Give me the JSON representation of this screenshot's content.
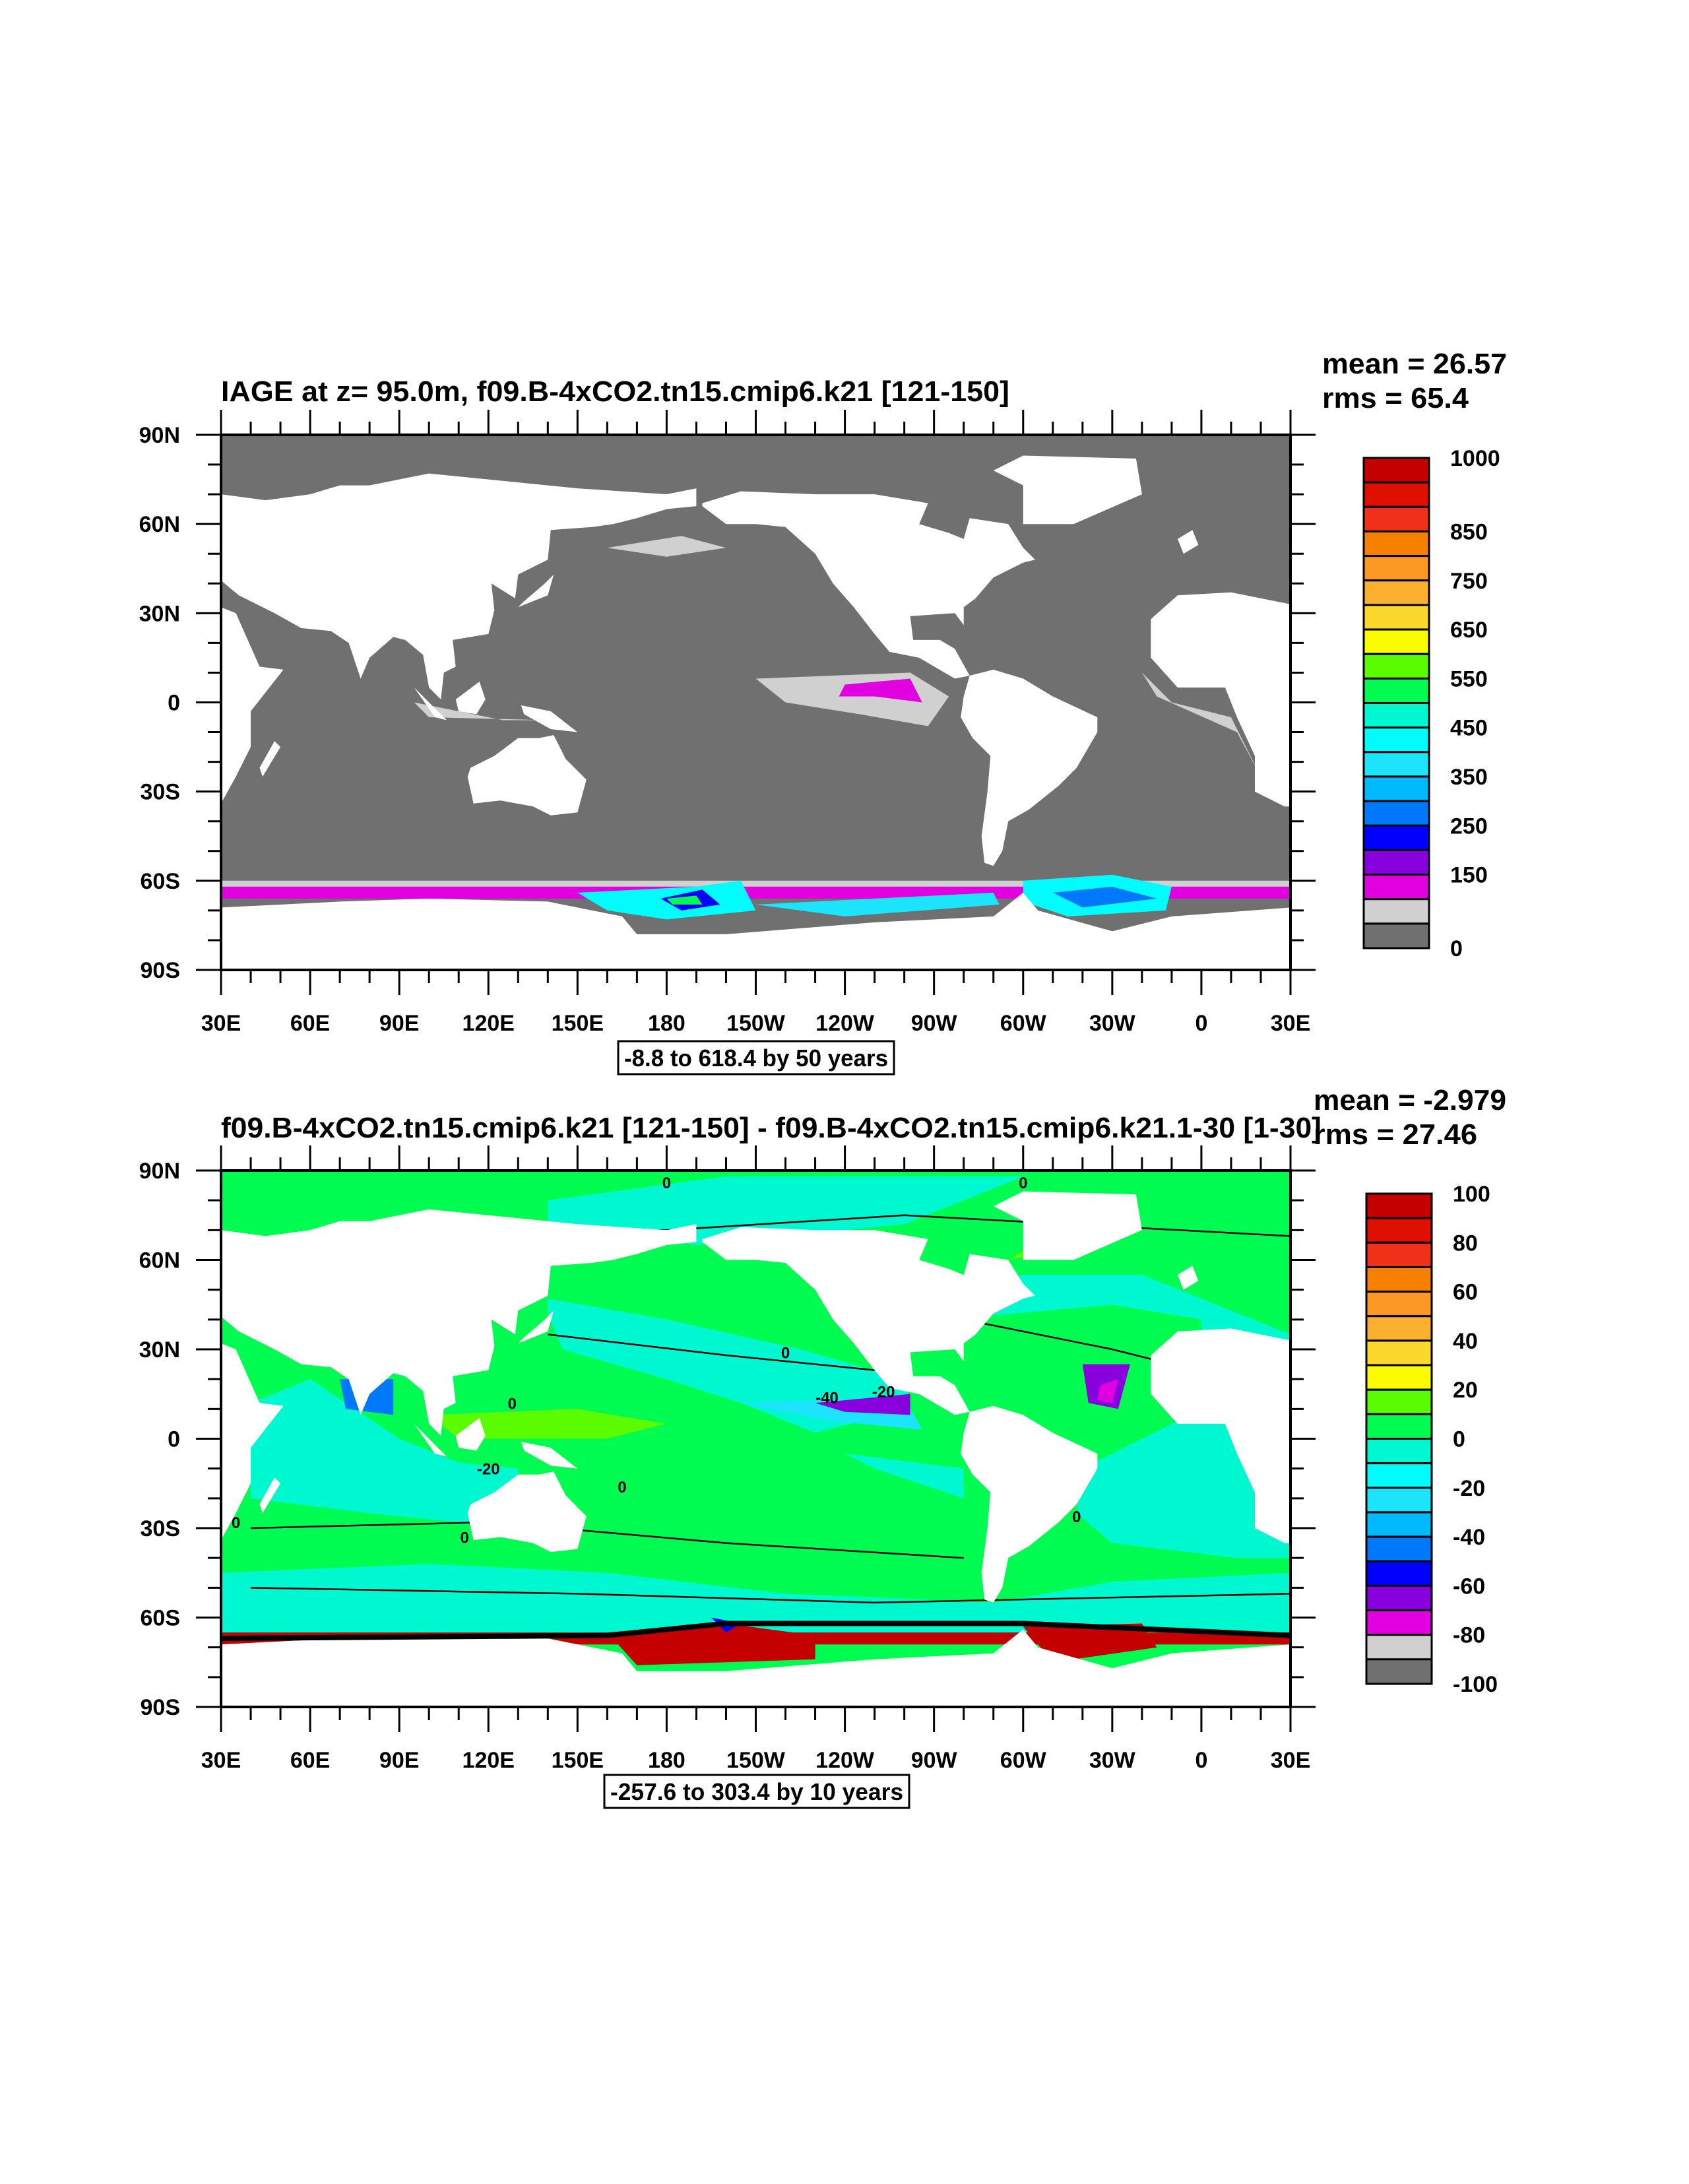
{
  "chart_data": [
    {
      "type": "heatmap",
      "subtype": "contour-map",
      "title": "IAGE at z=  95.0m, f09.B-4xCO2.tn15.cmip6.k21 [121-150]",
      "mean_label": "mean = 26.57",
      "rms_label": "rms = 65.4",
      "footer": "-8.8 to 618.4 by 50 years",
      "xlim": [
        30,
        390
      ],
      "ylim": [
        -90,
        90
      ],
      "x_ticks": [
        "30E",
        "60E",
        "90E",
        "120E",
        "150E",
        "180",
        "150W",
        "120W",
        "90W",
        "60W",
        "30W",
        "0",
        "30E"
      ],
      "y_ticks": [
        "90N",
        "60N",
        "30N",
        "0",
        "30S",
        "60S",
        "90S"
      ],
      "colorbar": {
        "colors": [
          "#c40000",
          "#e01000",
          "#f03018",
          "#f88000",
          "#fc9824",
          "#fcb030",
          "#fcd82c",
          "#fcfc00",
          "#5cfc00",
          "#00fc50",
          "#00f8d0",
          "#00fcfc",
          "#1ce4fc",
          "#00b8fc",
          "#0078fc",
          "#0000fc",
          "#8800dc",
          "#e000e0",
          "#d0d0d0",
          "#707070"
        ],
        "labels": [
          {
            "text": "1000",
            "at": 0
          },
          {
            "text": "850",
            "at": 3
          },
          {
            "text": "750",
            "at": 5
          },
          {
            "text": "650",
            "at": 7
          },
          {
            "text": "550",
            "at": 9
          },
          {
            "text": "450",
            "at": 11
          },
          {
            "text": "350",
            "at": 13
          },
          {
            "text": "250",
            "at": 15
          },
          {
            "text": "150",
            "at": 17
          },
          {
            "text": "0",
            "at": 20
          }
        ]
      },
      "contour_labels": []
    },
    {
      "type": "heatmap",
      "subtype": "contour-map",
      "title": "f09.B-4xCO2.tn15.cmip6.k21 [121-150] - f09.B-4xCO2.tn15.cmip6.k21.1-30 [1-30]",
      "mean_label": "mean = -2.979",
      "rms_label": "rms = 27.46",
      "footer": "-257.6 to 303.4 by 10 years",
      "xlim": [
        30,
        390
      ],
      "ylim": [
        -90,
        90
      ],
      "x_ticks": [
        "30E",
        "60E",
        "90E",
        "120E",
        "150E",
        "180",
        "150W",
        "120W",
        "90W",
        "60W",
        "30W",
        "0",
        "30E"
      ],
      "y_ticks": [
        "90N",
        "60N",
        "30N",
        "0",
        "30S",
        "60S",
        "90S"
      ],
      "colorbar": {
        "colors": [
          "#c40000",
          "#e01000",
          "#f03018",
          "#f88000",
          "#fc9824",
          "#fcb030",
          "#fcd82c",
          "#fcfc00",
          "#5cfc00",
          "#00fc50",
          "#00f8d0",
          "#00fcfc",
          "#1ce4fc",
          "#00b8fc",
          "#0078fc",
          "#0000fc",
          "#8800dc",
          "#e000e0",
          "#d0d0d0",
          "#707070"
        ],
        "labels": [
          {
            "text": "100",
            "at": 0
          },
          {
            "text": "80",
            "at": 2
          },
          {
            "text": "60",
            "at": 4
          },
          {
            "text": "40",
            "at": 6
          },
          {
            "text": "20",
            "at": 8
          },
          {
            "text": "0",
            "at": 10
          },
          {
            "text": "-20",
            "at": 12
          },
          {
            "text": "-40",
            "at": 14
          },
          {
            "text": "-60",
            "at": 16
          },
          {
            "text": "-80",
            "at": 18
          },
          {
            "text": "-100",
            "at": 20
          }
        ]
      },
      "contour_labels": [
        {
          "text": "0",
          "lon": 180,
          "lat": 84
        },
        {
          "text": "0",
          "lon": 300,
          "lat": 84
        },
        {
          "text": "0",
          "lon": 220,
          "lat": 27
        },
        {
          "text": "0",
          "lon": 128,
          "lat": 10
        },
        {
          "text": "-40",
          "lon": 234,
          "lat": 12
        },
        {
          "text": "-20",
          "lon": 253,
          "lat": 14
        },
        {
          "text": "-20",
          "lon": 120,
          "lat": -12
        },
        {
          "text": "0",
          "lon": 35,
          "lat": -30
        },
        {
          "text": "0",
          "lon": 112,
          "lat": -35
        },
        {
          "text": "0",
          "lon": 165,
          "lat": -18
        },
        {
          "text": "0",
          "lon": 318,
          "lat": -28
        }
      ]
    }
  ]
}
